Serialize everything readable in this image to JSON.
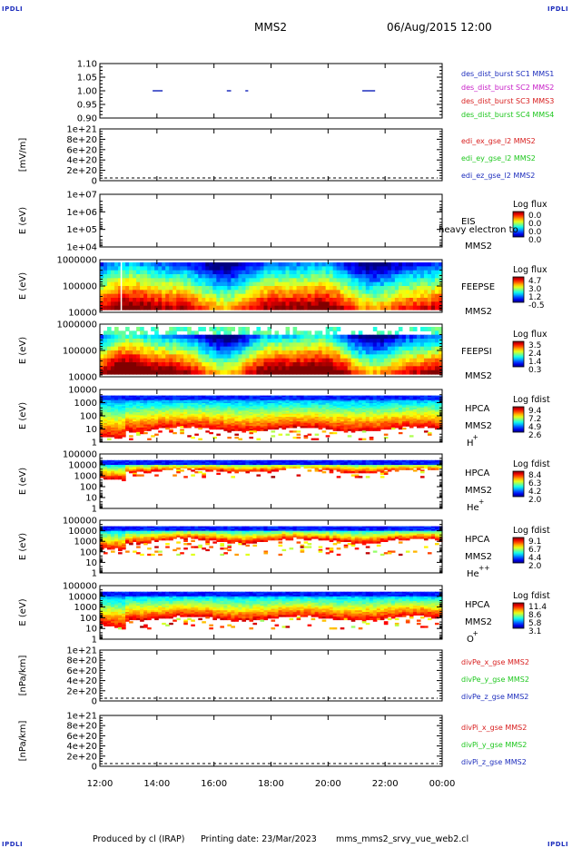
{
  "header": {
    "corner_label": "IPDLI",
    "spacecraft": "MMS2",
    "datetime": "06/Aug/2015 12:00"
  },
  "footer": {
    "produced_by": "Produced by cl (IRAP)",
    "printing_date": "Printing date: 23/Mar/2023",
    "filename": "mms_mms2_srvy_vue_web2.cl"
  },
  "chart_data": {
    "type": "heatmap",
    "x_axis": {
      "ticks": [
        "12:00",
        "14:00",
        "16:00",
        "18:00",
        "20:00",
        "22:00",
        "00:00"
      ],
      "range_hours": [
        12,
        24
      ]
    },
    "panels": [
      {
        "id": "burst",
        "type": "timeline",
        "ylim": [
          0.9,
          1.1
        ],
        "yticks": [
          "1.10",
          "1.05",
          "1.00",
          "0.95",
          "0.90"
        ],
        "right_labels": [
          {
            "text": "des_dist_burst SC1 MMS1",
            "color": "#1e2ebd"
          },
          {
            "text": "des_dist_burst SC2 MMS2",
            "color": "#c71ec7"
          },
          {
            "text": "des_dist_burst SC3 MMS3",
            "color": "#d81e1e"
          },
          {
            "text": "des_dist_burst SC4 MMS4",
            "color": "#1ec71e"
          }
        ],
        "intervals_hours": [
          [
            13.85,
            14.2
          ],
          [
            16.45,
            16.6
          ],
          [
            17.1,
            17.2
          ],
          [
            21.2,
            21.65
          ]
        ],
        "interval_y": 1.0
      },
      {
        "id": "edi",
        "type": "line",
        "ylabel": "[mV/m]",
        "ylim": [
          0,
          1e+21
        ],
        "yticks": [
          "1e+21",
          "8e+20",
          "6e+20",
          "4e+20",
          "2e+20",
          "0"
        ],
        "dashed_zero": true,
        "right_labels": [
          {
            "text": "edi_ex_gse_l2 MMS2",
            "color": "#d81e1e"
          },
          {
            "text": "edi_ey_gse_l2 MMS2",
            "color": "#1ec71e"
          },
          {
            "text": "edi_ez_gse_l2 MMS2",
            "color": "#1e2ebd"
          }
        ]
      },
      {
        "id": "eis",
        "type": "spectrogram",
        "ylabel": "E (eV)",
        "log": true,
        "yticks": [
          "1e+07",
          "1e+06",
          "1e+05",
          "1e+04"
        ],
        "instrument": "EIS",
        "instrument_sub": "heavy electron to",
        "spacecraft": "MMS2",
        "colorbar_title": "Log flux",
        "colorbar_ticks": [
          "0.0",
          "0.0",
          "0.0",
          "0.0"
        ],
        "empty": true
      },
      {
        "id": "feepse",
        "type": "spectrogram",
        "ylabel": "E (eV)",
        "log": true,
        "yticks": [
          "1000000",
          "100000",
          "10000"
        ],
        "instrument": "FEEPSE",
        "spacecraft": "MMS2",
        "colorbar_title": "Log flux",
        "colorbar_ticks": [
          "4.7",
          "3.0",
          "1.2",
          "-0.5"
        ]
      },
      {
        "id": "feepsi",
        "type": "spectrogram",
        "ylabel": "E (eV)",
        "log": true,
        "yticks": [
          "1000000",
          "100000",
          "10000"
        ],
        "instrument": "FEEPSI",
        "spacecraft": "MMS2",
        "colorbar_title": "Log flux",
        "colorbar_ticks": [
          "3.5",
          "2.4",
          "1.4",
          "0.3"
        ]
      },
      {
        "id": "hpca_h",
        "type": "spectrogram",
        "ylabel": "E (eV)",
        "log": true,
        "yticks": [
          "10000",
          "1000",
          "100",
          "10",
          "1"
        ],
        "instrument": "HPCA",
        "spacecraft": "MMS2",
        "species": "H",
        "species_sup": "+",
        "colorbar_title": "Log fdist",
        "colorbar_ticks": [
          "9.4",
          "7.2",
          "4.9",
          "2.6"
        ]
      },
      {
        "id": "hpca_he1",
        "type": "spectrogram",
        "ylabel": "E (eV)",
        "log": true,
        "yticks": [
          "100000",
          "10000",
          "1000",
          "100",
          "10",
          "1"
        ],
        "instrument": "HPCA",
        "spacecraft": "MMS2",
        "species": "He",
        "species_sup": "+",
        "colorbar_title": "Log fdist",
        "colorbar_ticks": [
          "8.4",
          "6.3",
          "4.2",
          "2.0"
        ]
      },
      {
        "id": "hpca_he2",
        "type": "spectrogram",
        "ylabel": "E (eV)",
        "log": true,
        "yticks": [
          "100000",
          "10000",
          "1000",
          "100",
          "10",
          "1"
        ],
        "instrument": "HPCA",
        "spacecraft": "MMS2",
        "species": "He",
        "species_sup": "++",
        "colorbar_title": "Log fdist",
        "colorbar_ticks": [
          "9.1",
          "6.7",
          "4.4",
          "2.0"
        ]
      },
      {
        "id": "hpca_o",
        "type": "spectrogram",
        "ylabel": "E (eV)",
        "log": true,
        "yticks": [
          "100000",
          "10000",
          "1000",
          "100",
          "10",
          "1"
        ],
        "instrument": "HPCA",
        "spacecraft": "MMS2",
        "species": "O",
        "species_sup": "+",
        "colorbar_title": "Log fdist",
        "colorbar_ticks": [
          "11.4",
          "8.6",
          "5.8",
          "3.1"
        ]
      },
      {
        "id": "divpe",
        "type": "line",
        "ylabel": "[nPa/km]",
        "ylim": [
          0,
          1e+21
        ],
        "yticks": [
          "1e+21",
          "8e+20",
          "6e+20",
          "4e+20",
          "2e+20",
          "0"
        ],
        "dashed_zero": true,
        "right_labels": [
          {
            "text": "divPe_x_gse MMS2",
            "color": "#d81e1e"
          },
          {
            "text": "divPe_y_gse MMS2",
            "color": "#1ec71e"
          },
          {
            "text": "divPe_z_gse MMS2",
            "color": "#1e2ebd"
          }
        ]
      },
      {
        "id": "divpi",
        "type": "line",
        "ylabel": "[nPa/km]",
        "ylim": [
          0,
          1e+21
        ],
        "yticks": [
          "1e+21",
          "8e+20",
          "6e+20",
          "4e+20",
          "2e+20",
          "0"
        ],
        "dashed_zero": true,
        "right_labels": [
          {
            "text": "divPi_x_gse MMS2",
            "color": "#d81e1e"
          },
          {
            "text": "divPi_y_gse MMS2",
            "color": "#1ec71e"
          },
          {
            "text": "divPi_z_gse MMS2",
            "color": "#1e2ebd"
          }
        ]
      }
    ]
  }
}
